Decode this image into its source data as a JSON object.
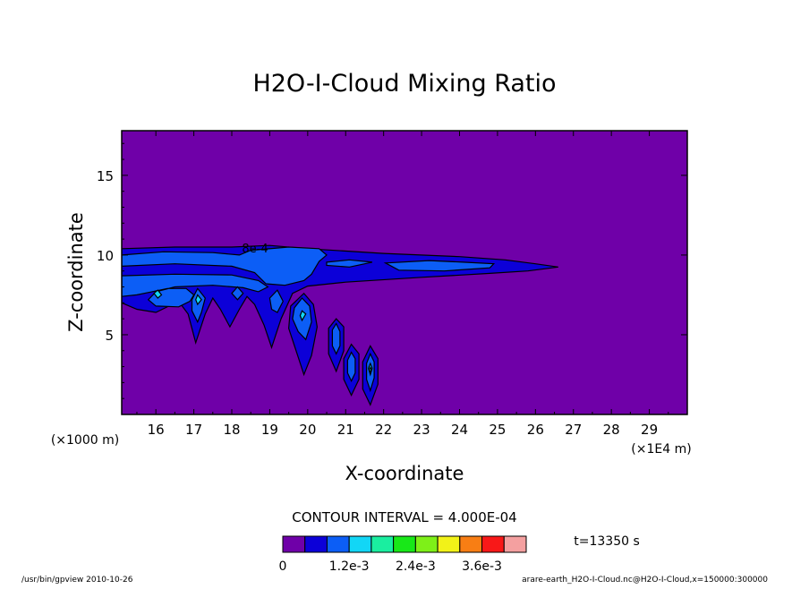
{
  "chart_data": {
    "type": "contour",
    "title": "H2O-I-Cloud Mixing Ratio",
    "xlabel": "X-coordinate",
    "ylabel": "Z-coordinate",
    "x_unit_label": "(×1E4 m)",
    "y_unit_label": "(×1000 m)",
    "xlim": [
      15.1,
      30.0
    ],
    "ylim": [
      0.0,
      17.8
    ],
    "x_ticks": [
      "16",
      "17",
      "18",
      "19",
      "20",
      "21",
      "22",
      "23",
      "24",
      "25",
      "26",
      "27",
      "28",
      "29"
    ],
    "y_ticks": [
      "5",
      "10",
      "15"
    ],
    "contour_interval_text": "CONTOUR INTERVAL = 4.000E-04",
    "contour_label": "8e-4",
    "time_text": "t=13350 s",
    "footer_left": "/usr/bin/gpview  2010-10-26",
    "footer_right": "arare-earth_H2O-I-Cloud.nc@H2O-I-Cloud,x=150000:300000",
    "colorbar": {
      "colors": [
        "#6f00a8",
        "#0c00d8",
        "#0c5ef6",
        "#12d6f6",
        "#1aeea0",
        "#18e818",
        "#7ef018",
        "#f2f218",
        "#f87e14",
        "#f81818",
        "#f4a0a0"
      ],
      "tick_labels": [
        "0",
        "1.2e-3",
        "2.4e-3",
        "3.6e-3"
      ]
    },
    "regions": [
      {
        "level": 0,
        "label": "background",
        "points": [
          [
            15.1,
            0
          ],
          [
            30,
            0
          ],
          [
            30,
            17.8
          ],
          [
            15.1,
            17.8
          ]
        ]
      },
      {
        "level": 1,
        "label": "main cloud layer",
        "points": [
          [
            15.1,
            10.4
          ],
          [
            16.5,
            10.5
          ],
          [
            18,
            10.5
          ],
          [
            19,
            10.6
          ],
          [
            20,
            10.4
          ],
          [
            22,
            10.1
          ],
          [
            24,
            9.9
          ],
          [
            25.2,
            9.7
          ],
          [
            26,
            9.45
          ],
          [
            26.6,
            9.25
          ],
          [
            25.8,
            9.0
          ],
          [
            24.8,
            8.85
          ],
          [
            23,
            8.6
          ],
          [
            21,
            8.3
          ],
          [
            20,
            8.05
          ],
          [
            19.6,
            7.6
          ],
          [
            19.3,
            6.0
          ],
          [
            19.05,
            4.2
          ],
          [
            18.85,
            5.6
          ],
          [
            18.6,
            6.9
          ],
          [
            18.4,
            7.4
          ],
          [
            18.2,
            6.6
          ],
          [
            17.95,
            5.5
          ],
          [
            17.7,
            6.6
          ],
          [
            17.5,
            7.3
          ],
          [
            17.3,
            6.3
          ],
          [
            17.05,
            4.5
          ],
          [
            16.85,
            6.3
          ],
          [
            16.6,
            7.1
          ],
          [
            16.0,
            6.4
          ],
          [
            15.5,
            6.6
          ],
          [
            15.1,
            7.0
          ]
        ]
      },
      {
        "level": 1,
        "label": "cell near x=20",
        "points": [
          [
            19.55,
            6.8
          ],
          [
            19.9,
            7.6
          ],
          [
            20.15,
            6.9
          ],
          [
            20.25,
            5.5
          ],
          [
            20.1,
            3.7
          ],
          [
            19.9,
            2.5
          ],
          [
            19.75,
            3.6
          ],
          [
            19.5,
            5.4
          ]
        ]
      },
      {
        "level": 1,
        "label": "cell near x=20.8",
        "points": [
          [
            20.55,
            5.4
          ],
          [
            20.75,
            6.0
          ],
          [
            20.95,
            5.5
          ],
          [
            20.95,
            4.0
          ],
          [
            20.75,
            2.7
          ],
          [
            20.55,
            3.8
          ]
        ]
      },
      {
        "level": 1,
        "label": "cell near x=21.2",
        "points": [
          [
            20.95,
            3.5
          ],
          [
            21.15,
            4.4
          ],
          [
            21.35,
            3.8
          ],
          [
            21.35,
            2.2
          ],
          [
            21.15,
            1.2
          ],
          [
            20.95,
            2.2
          ]
        ]
      },
      {
        "level": 1,
        "label": "cell near x=21.7",
        "points": [
          [
            21.45,
            3.3
          ],
          [
            21.65,
            4.3
          ],
          [
            21.85,
            3.5
          ],
          [
            21.85,
            1.9
          ],
          [
            21.65,
            0.6
          ],
          [
            21.45,
            1.6
          ]
        ]
      },
      {
        "level": 2,
        "label": "upper band",
        "points": [
          [
            15.1,
            10.0
          ],
          [
            16.2,
            10.2
          ],
          [
            17.5,
            10.15
          ],
          [
            18.2,
            10.0
          ],
          [
            18.5,
            10.3
          ],
          [
            19.5,
            10.5
          ],
          [
            20.3,
            10.4
          ],
          [
            20.5,
            10.0
          ],
          [
            20.3,
            9.6
          ],
          [
            20.1,
            8.8
          ],
          [
            19.9,
            8.4
          ],
          [
            19.4,
            8.1
          ],
          [
            18.9,
            8.2
          ],
          [
            18.6,
            8.9
          ],
          [
            18.0,
            9.3
          ],
          [
            16.5,
            9.45
          ],
          [
            15.1,
            9.3
          ]
        ]
      },
      {
        "level": 2,
        "label": "lower band",
        "points": [
          [
            15.1,
            8.7
          ],
          [
            16.5,
            8.8
          ],
          [
            18.0,
            8.75
          ],
          [
            18.7,
            8.4
          ],
          [
            18.95,
            8.0
          ],
          [
            18.7,
            7.7
          ],
          [
            18.3,
            7.95
          ],
          [
            17.5,
            8.1
          ],
          [
            16.5,
            8.0
          ],
          [
            16.0,
            7.7
          ],
          [
            15.8,
            7.2
          ],
          [
            16.0,
            6.8
          ],
          [
            16.6,
            6.75
          ],
          [
            16.9,
            7.1
          ],
          [
            17.0,
            7.5
          ],
          [
            16.8,
            7.9
          ],
          [
            16.3,
            7.9
          ],
          [
            15.9,
            7.7
          ],
          [
            15.5,
            7.5
          ],
          [
            15.1,
            7.4
          ]
        ]
      },
      {
        "level": 2,
        "label": "patch x=21-22",
        "points": [
          [
            20.5,
            9.55
          ],
          [
            21.1,
            9.7
          ],
          [
            21.7,
            9.55
          ],
          [
            21.1,
            9.25
          ],
          [
            20.5,
            9.35
          ]
        ]
      },
      {
        "level": 2,
        "label": "patch x=22-25",
        "points": [
          [
            22.05,
            9.5
          ],
          [
            23.2,
            9.65
          ],
          [
            24.1,
            9.55
          ],
          [
            24.9,
            9.45
          ],
          [
            24.8,
            9.2
          ],
          [
            23.6,
            9.0
          ],
          [
            22.4,
            9.05
          ]
        ]
      },
      {
        "level": 2,
        "label": "cell near x=17.1",
        "points": [
          [
            16.95,
            7.2
          ],
          [
            17.1,
            7.9
          ],
          [
            17.3,
            7.3
          ],
          [
            17.2,
            6.4
          ],
          [
            17.1,
            5.8
          ],
          [
            16.95,
            6.5
          ]
        ]
      },
      {
        "level": 2,
        "label": "cell near x=18.1",
        "points": [
          [
            18.0,
            7.6
          ],
          [
            18.15,
            8.0
          ],
          [
            18.3,
            7.6
          ],
          [
            18.15,
            7.2
          ]
        ]
      },
      {
        "level": 2,
        "label": "cell near x=19.1",
        "points": [
          [
            19.0,
            7.3
          ],
          [
            19.2,
            7.8
          ],
          [
            19.35,
            7.1
          ],
          [
            19.2,
            6.4
          ],
          [
            19.05,
            6.6
          ]
        ]
      },
      {
        "level": 2,
        "label": "cell near x=19.8",
        "points": [
          [
            19.65,
            6.7
          ],
          [
            19.85,
            7.3
          ],
          [
            20.05,
            6.8
          ],
          [
            20.1,
            5.8
          ],
          [
            19.95,
            4.7
          ],
          [
            19.75,
            5.2
          ],
          [
            19.6,
            6.0
          ]
        ]
      },
      {
        "level": 2,
        "label": "cell near x=20.8",
        "points": [
          [
            20.65,
            5.3
          ],
          [
            20.75,
            5.7
          ],
          [
            20.85,
            5.2
          ],
          [
            20.85,
            4.3
          ],
          [
            20.75,
            3.8
          ],
          [
            20.65,
            4.3
          ]
        ]
      },
      {
        "level": 2,
        "label": "cell near x=21.2",
        "points": [
          [
            21.05,
            3.4
          ],
          [
            21.15,
            3.9
          ],
          [
            21.25,
            3.5
          ],
          [
            21.25,
            2.6
          ],
          [
            21.15,
            2.1
          ],
          [
            21.05,
            2.6
          ]
        ]
      },
      {
        "level": 2,
        "label": "cell near x=21.7",
        "points": [
          [
            21.55,
            3.2
          ],
          [
            21.65,
            3.8
          ],
          [
            21.75,
            3.3
          ],
          [
            21.75,
            2.3
          ],
          [
            21.65,
            1.5
          ],
          [
            21.55,
            2.2
          ]
        ]
      },
      {
        "level": 3,
        "label": "core x=15.8",
        "points": [
          [
            15.95,
            7.6
          ],
          [
            16.05,
            7.8
          ],
          [
            16.15,
            7.5
          ],
          [
            16.05,
            7.3
          ]
        ]
      },
      {
        "level": 3,
        "label": "core x=17.1",
        "points": [
          [
            17.05,
            7.2
          ],
          [
            17.1,
            7.5
          ],
          [
            17.2,
            7.2
          ],
          [
            17.1,
            6.9
          ]
        ]
      },
      {
        "level": 3,
        "label": "core x=19.8",
        "points": [
          [
            19.8,
            6.2
          ],
          [
            19.85,
            6.5
          ],
          [
            19.95,
            6.3
          ],
          [
            19.85,
            5.9
          ]
        ]
      },
      {
        "level": 3,
        "label": "core x=21.65",
        "points": [
          [
            21.6,
            2.9
          ],
          [
            21.65,
            3.2
          ],
          [
            21.7,
            2.9
          ],
          [
            21.65,
            2.5
          ]
        ]
      },
      {
        "level": 4,
        "label": "peak x=21.65",
        "points": [
          [
            21.62,
            2.8
          ],
          [
            21.65,
            2.95
          ],
          [
            21.68,
            2.8
          ],
          [
            21.65,
            2.65
          ]
        ]
      }
    ]
  }
}
